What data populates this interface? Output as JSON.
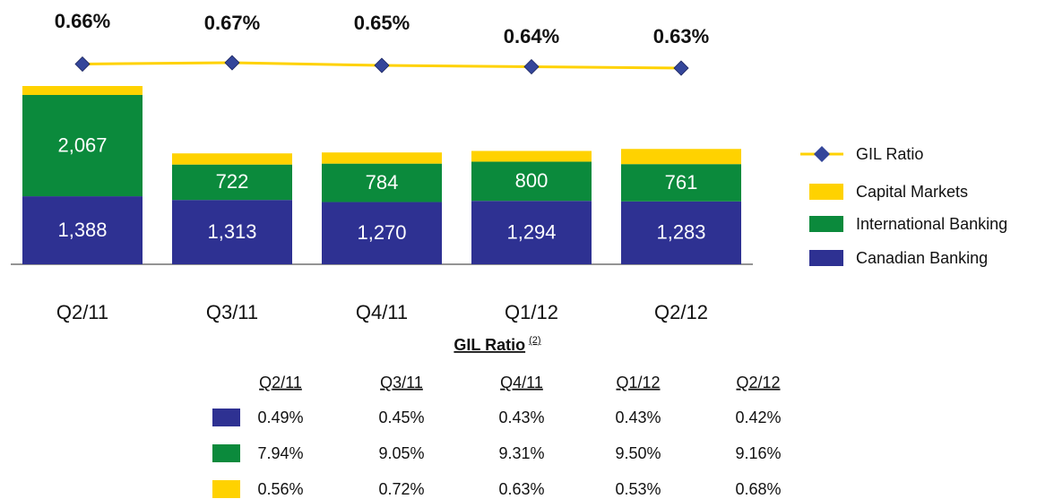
{
  "chart_data": {
    "type": "bar",
    "categories": [
      "Q2/11",
      "Q3/11",
      "Q4/11",
      "Q1/12",
      "Q2/12"
    ],
    "stacked": true,
    "series": [
      {
        "name": "Canadian Banking",
        "color": "#2e3192",
        "values": [
          1388,
          1313,
          1270,
          1294,
          1283
        ],
        "value_labels": [
          "1,388",
          "1,313",
          "1,270",
          "1,294",
          "1,283"
        ]
      },
      {
        "name": "International Banking",
        "color": "#0b8a3c",
        "values": [
          2067,
          722,
          784,
          800,
          761
        ],
        "value_labels": [
          "2,067",
          "722",
          "784",
          "800",
          "761"
        ]
      },
      {
        "name": "Capital Markets",
        "color": "#ffd200",
        "values": [
          183,
          228,
          228,
          219,
          310
        ]
      },
      {
        "name": "GIL Ratio",
        "type": "line",
        "axis": "y2",
        "color": "#ffd200",
        "marker_color": "#34469a",
        "values": [
          0.66,
          0.67,
          0.65,
          0.64,
          0.63
        ],
        "value_labels": [
          "0.66%",
          "0.67%",
          "0.65%",
          "0.64%",
          "0.63%"
        ]
      }
    ]
  },
  "table": {
    "title": "GIL Ratio",
    "note": "(2)",
    "columns": [
      "Q2/11",
      "Q3/11",
      "Q4/11",
      "Q1/12",
      "Q2/12"
    ],
    "rows": [
      {
        "color": "#2e3192",
        "cells": [
          "0.49%",
          "0.45%",
          "0.43%",
          "0.43%",
          "0.42%"
        ]
      },
      {
        "color": "#0b8a3c",
        "cells": [
          "7.94%",
          "9.05%",
          "9.31%",
          "9.50%",
          "9.16%"
        ]
      },
      {
        "color": "#ffd200",
        "cells": [
          "0.56%",
          "0.72%",
          "0.63%",
          "0.53%",
          "0.68%"
        ]
      }
    ]
  }
}
